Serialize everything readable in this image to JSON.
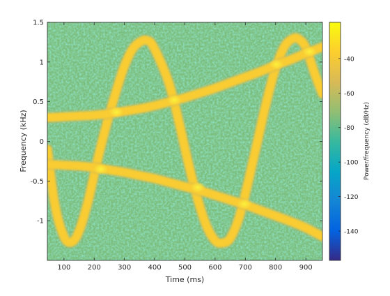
{
  "chart_data": {
    "type": "heatmap",
    "subtype": "spectrogram",
    "xlabel": "Time (ms)",
    "ylabel": "Frequency (kHz)",
    "colorbar_label": "Power/frequency (dB/Hz)",
    "xlim": [
      45,
      955
    ],
    "ylim": [
      -1.5,
      1.5
    ],
    "clim": [
      -157,
      -19
    ],
    "x_ticks": [
      100,
      200,
      300,
      400,
      500,
      600,
      700,
      800,
      900
    ],
    "y_ticks": [
      -1,
      -0.5,
      0,
      0.5,
      1,
      1.5
    ],
    "colorbar_ticks": [
      -140,
      -120,
      -100,
      -80,
      -60,
      -40
    ],
    "colormap": "parula",
    "background_level_db": -75,
    "ridge_level_db": -38,
    "crossing_level_db": -30,
    "series": [
      {
        "kind": "sinusoidal-fm",
        "x": [
          45,
          70,
          100,
          125,
          150,
          180,
          210,
          240,
          270,
          300,
          330,
          360,
          375,
          390,
          420,
          450,
          480,
          510,
          540,
          570,
          600,
          625,
          650,
          680,
          710,
          740,
          770,
          800,
          830,
          860,
          880,
          900,
          930,
          955
        ],
        "y": [
          -0.1,
          -0.8,
          -1.2,
          -1.27,
          -1.13,
          -0.75,
          -0.25,
          0.2,
          0.6,
          0.95,
          1.18,
          1.27,
          1.27,
          1.23,
          1.0,
          0.7,
          0.25,
          -0.25,
          -0.7,
          -1.05,
          -1.25,
          -1.28,
          -1.22,
          -0.95,
          -0.5,
          0.0,
          0.5,
          0.92,
          1.2,
          1.3,
          1.28,
          1.18,
          0.85,
          0.6
        ]
      },
      {
        "kind": "rising-chirp",
        "x": [
          45,
          100,
          150,
          200,
          250,
          300,
          350,
          400,
          450,
          500,
          550,
          600,
          650,
          700,
          750,
          800,
          850,
          900,
          955
        ],
        "y": [
          0.3,
          0.31,
          0.32,
          0.33,
          0.35,
          0.38,
          0.41,
          0.45,
          0.5,
          0.55,
          0.61,
          0.67,
          0.74,
          0.81,
          0.88,
          0.96,
          1.03,
          1.11,
          1.19
        ]
      },
      {
        "kind": "falling-chirp",
        "x": [
          45,
          100,
          150,
          200,
          250,
          300,
          350,
          400,
          450,
          500,
          550,
          600,
          650,
          700,
          750,
          800,
          850,
          900,
          955
        ],
        "y": [
          -0.29,
          -0.3,
          -0.31,
          -0.33,
          -0.36,
          -0.39,
          -0.43,
          -0.47,
          -0.52,
          -0.57,
          -0.62,
          -0.68,
          -0.74,
          -0.8,
          -0.87,
          -0.94,
          -1.01,
          -1.09,
          -1.2
        ]
      }
    ],
    "crossings": [
      {
        "x": 222,
        "y": -0.35
      },
      {
        "x": 273,
        "y": 0.37
      },
      {
        "x": 465,
        "y": 0.52
      },
      {
        "x": 543,
        "y": -0.58
      },
      {
        "x": 697,
        "y": -0.79
      },
      {
        "x": 803,
        "y": 0.97
      },
      {
        "x": 912,
        "y": 1.13
      }
    ]
  }
}
